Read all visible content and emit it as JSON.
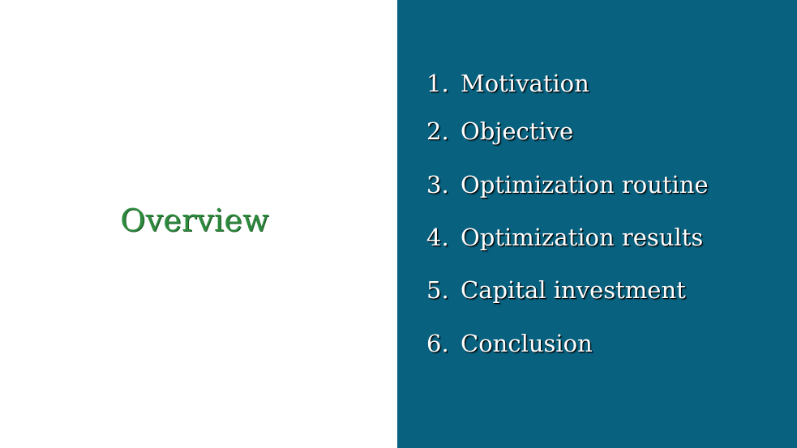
{
  "title": "Overview",
  "agenda": [
    {
      "number": "1.",
      "label": "Motivation"
    },
    {
      "number": "2.",
      "label": "Objective"
    },
    {
      "number": "3.",
      "label": "Optimization routine"
    },
    {
      "number": "4.",
      "label": "Optimization results"
    },
    {
      "number": "5.",
      "label": "Capital investment"
    },
    {
      "number": "6.",
      "label": "Conclusion"
    }
  ],
  "colors": {
    "title": "#2e8b3e",
    "panel_background": "#07617f",
    "agenda_text": "#ffffff"
  }
}
